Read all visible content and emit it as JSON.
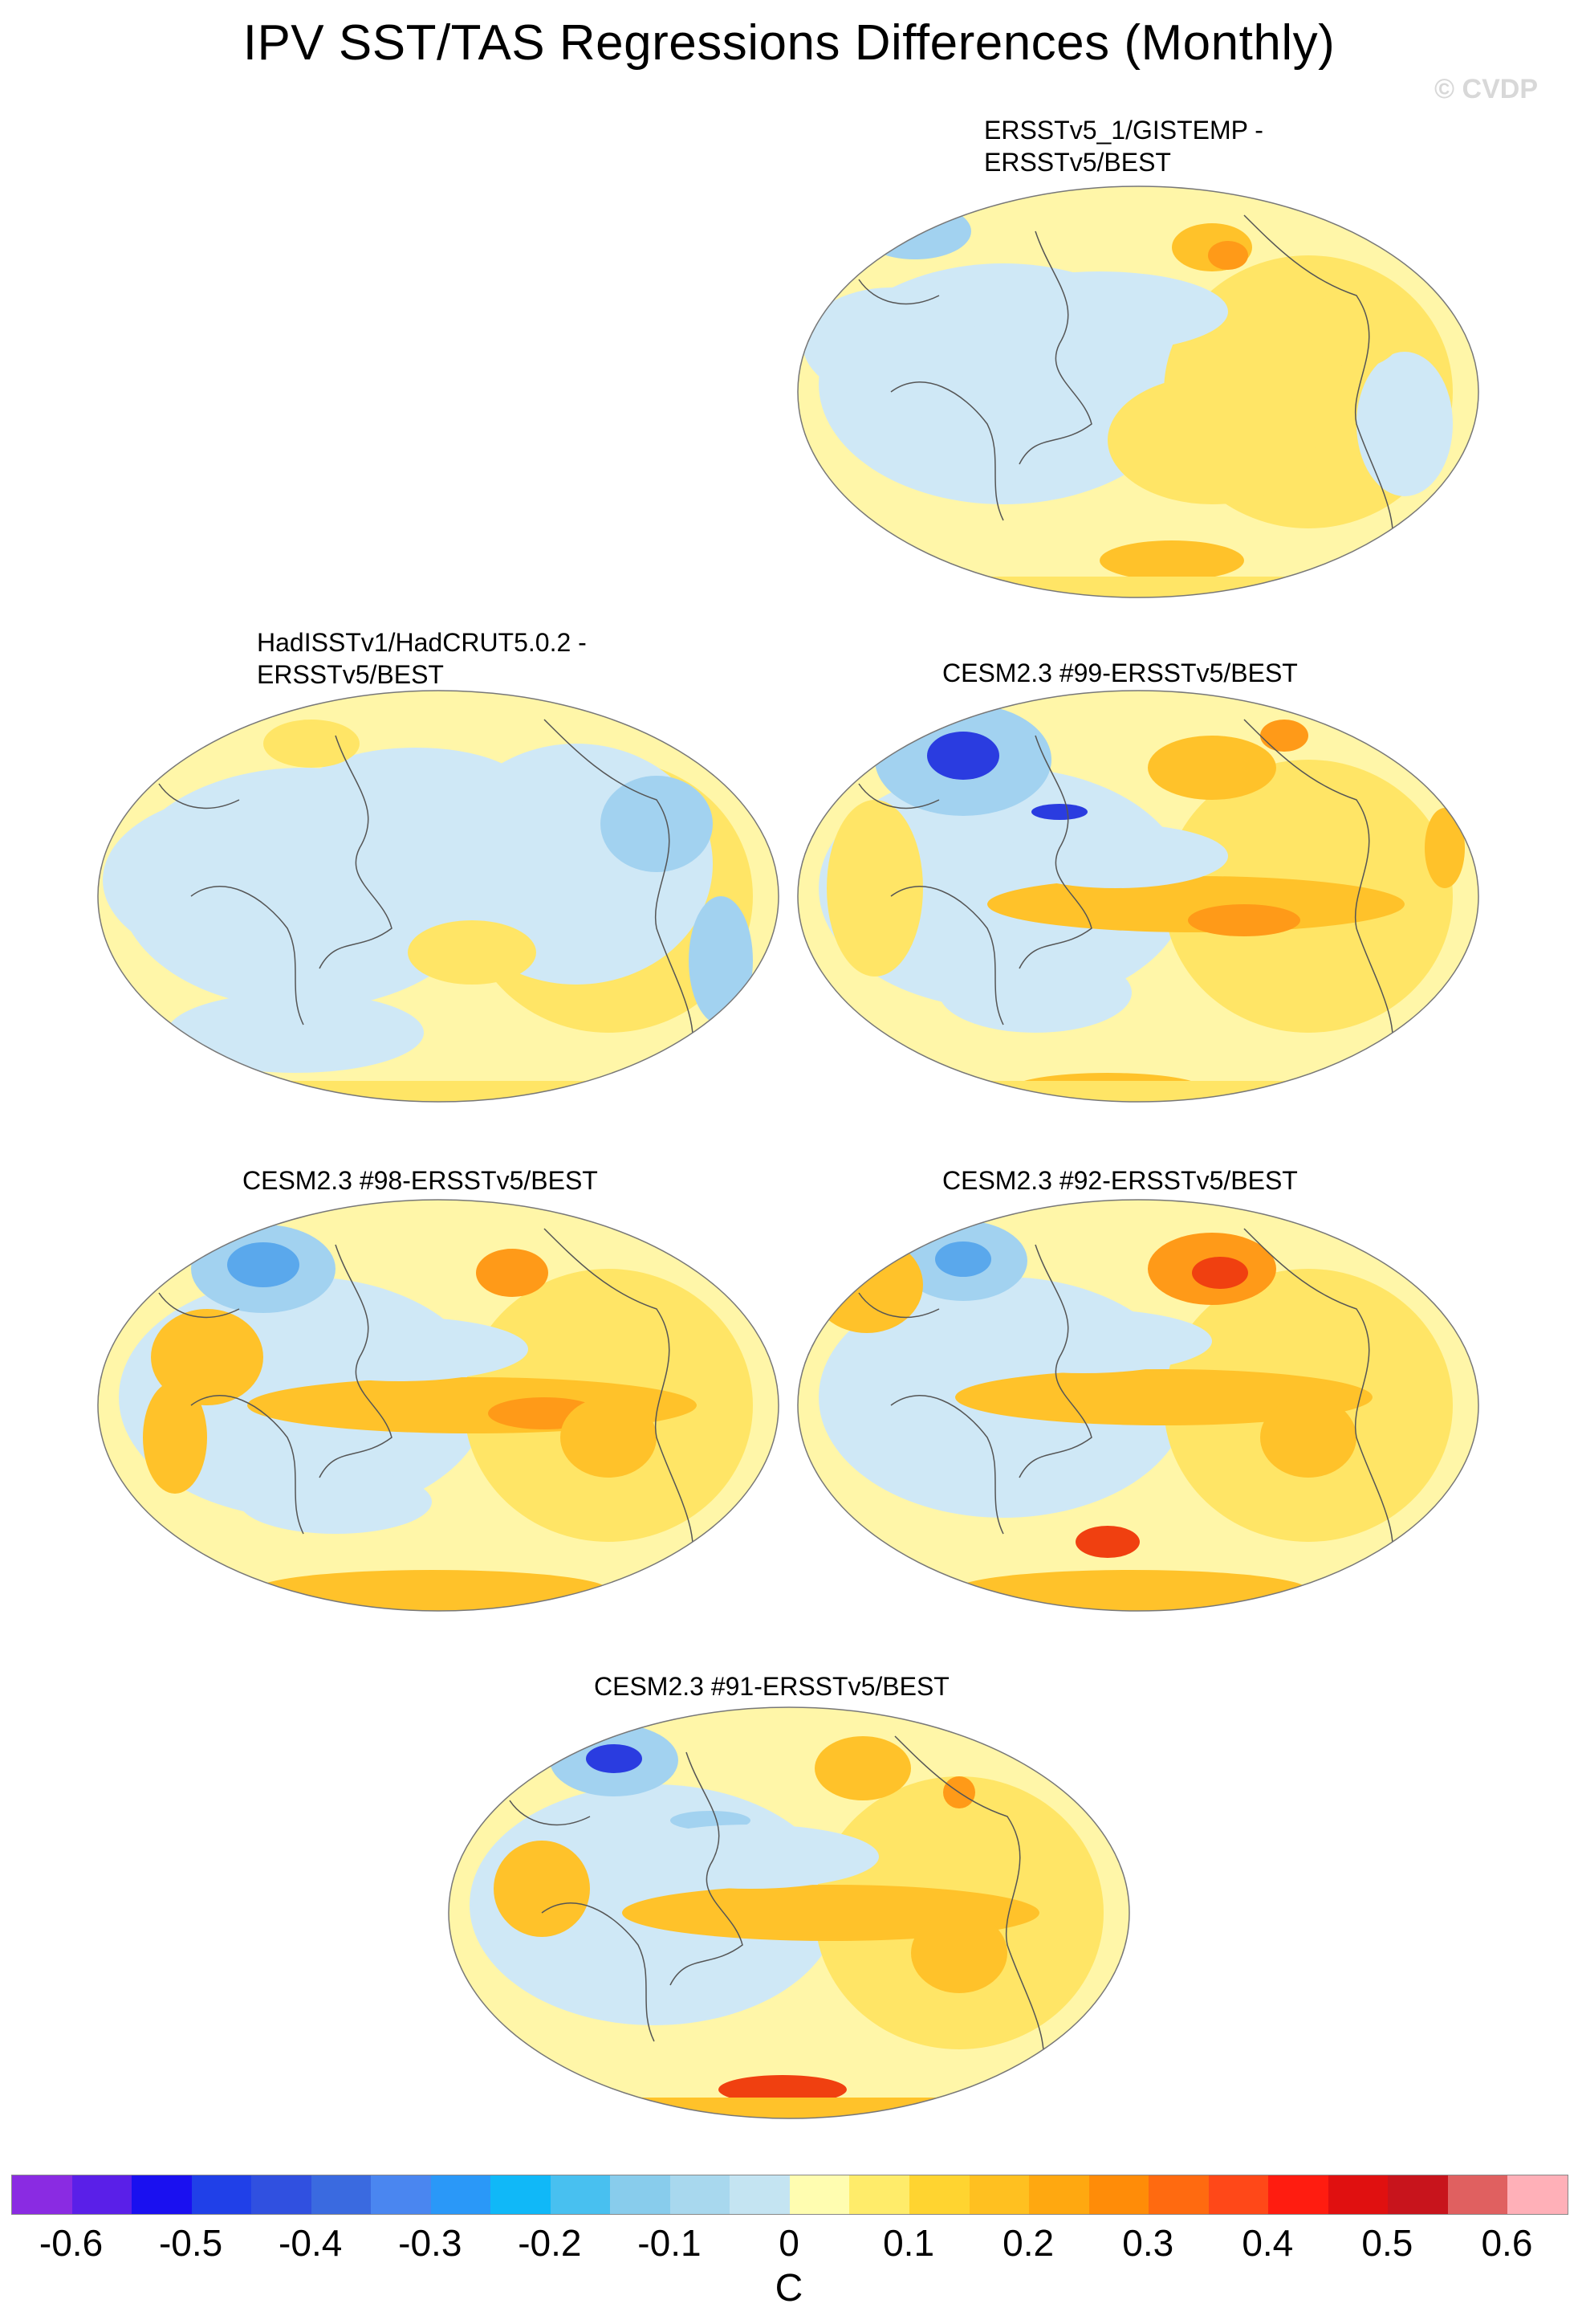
{
  "title": "IPV SST/TAS Regressions Differences (Monthly)",
  "watermark": "© CVDP",
  "panels": [
    {
      "id": "p1",
      "title_lines": [
        "ERSSTv5_1/GISTEMP -",
        "ERSSTv5/BEST"
      ]
    },
    {
      "id": "p2",
      "title_lines": [
        "HadISSTv1/HadCRUT5.0.2 -",
        "ERSSTv5/BEST"
      ]
    },
    {
      "id": "p3",
      "title_lines": [
        "CESM2.3 #99-ERSSTv5/BEST"
      ]
    },
    {
      "id": "p4",
      "title_lines": [
        "CESM2.3 #98-ERSSTv5/BEST"
      ]
    },
    {
      "id": "p5",
      "title_lines": [
        "CESM2.3 #92-ERSSTv5/BEST"
      ]
    },
    {
      "id": "p6",
      "title_lines": [
        "CESM2.3 #91-ERSSTv5/BEST"
      ]
    }
  ],
  "colorbar": {
    "colors": [
      "#8a2be2",
      "#5a1fe8",
      "#1a10f0",
      "#2040e8",
      "#3050e0",
      "#3a6ae0",
      "#4a86f0",
      "#2a98f8",
      "#10b8f8",
      "#48c0f0",
      "#88ccec",
      "#a8d8ee",
      "#c4e4f2",
      "#fffdb0",
      "#ffec6a",
      "#ffd430",
      "#ffc020",
      "#ffa810",
      "#ff8c08",
      "#ff6a10",
      "#ff4818",
      "#ff1c10",
      "#e01010",
      "#c8141c",
      "#e06060",
      "#ffb0b8"
    ],
    "tick_labels": [
      "-0.6",
      "-0.5",
      "-0.4",
      "-0.3",
      "-0.2",
      "-0.1",
      "0",
      "0.1",
      "0.2",
      "0.3",
      "0.4",
      "0.5",
      "0.6"
    ],
    "units": "C"
  },
  "map_colors": {
    "neutral_pos": "#fff6a8",
    "weak_pos": "#ffe566",
    "mid_pos": "#ffc22a",
    "strong_pos": "#ff9a18",
    "very_strong_pos": "#f04010",
    "weak_neg": "#cfe8f6",
    "mid_neg": "#a2d2f0",
    "strong_neg": "#5aa8ec",
    "very_strong_neg": "#2a3ce0",
    "coast": "#555555"
  }
}
